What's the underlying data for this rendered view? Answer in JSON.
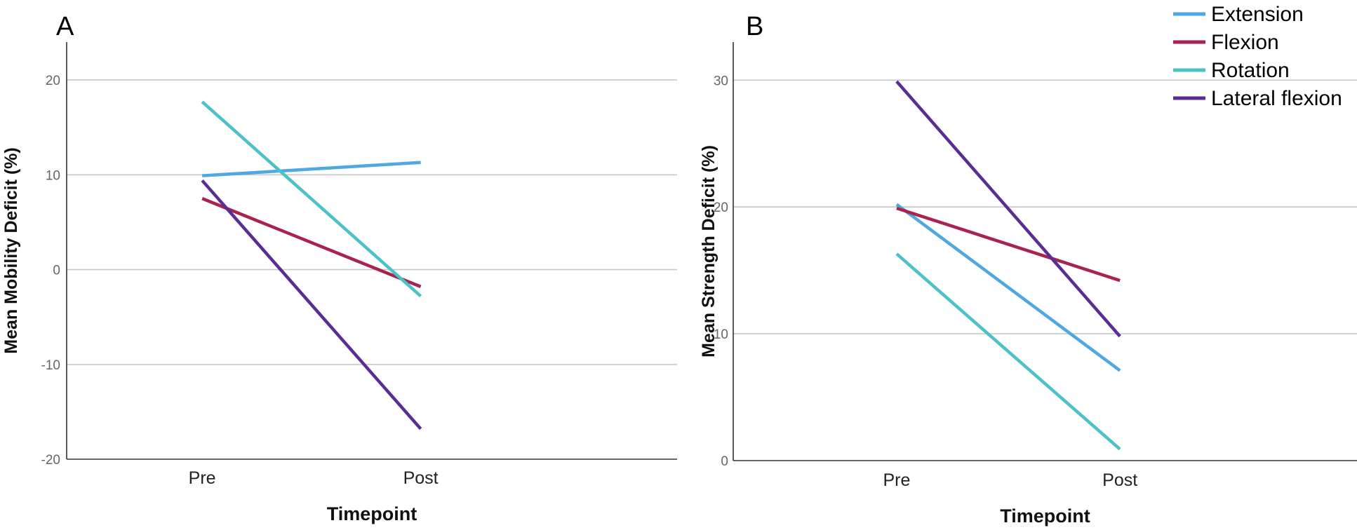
{
  "legend": {
    "placement": "top-right",
    "items": [
      {
        "label": "Extension",
        "color": "#4ea9e0"
      },
      {
        "label": "Flexion",
        "color": "#a8234f"
      },
      {
        "label": "Rotation",
        "color": "#49c2c8"
      },
      {
        "label": "Lateral flexion",
        "color": "#5b2c96"
      }
    ]
  },
  "chart_data": [
    {
      "type": "line",
      "panel_label": "A",
      "categories": [
        "Pre",
        "Post"
      ],
      "xlabel": "Timepoint",
      "ylabel": "Mean Mobility Deficit (%)",
      "ylim": [
        -20,
        24
      ],
      "yticks": [
        -20,
        -10,
        0,
        10,
        20
      ],
      "grid": true,
      "series": [
        {
          "name": "Extension",
          "color": "#4ea9e0",
          "values": [
            9.9,
            11.3
          ]
        },
        {
          "name": "Flexion",
          "color": "#a8234f",
          "values": [
            7.5,
            -1.8
          ]
        },
        {
          "name": "Rotation",
          "color": "#49c2c8",
          "values": [
            17.7,
            -2.8
          ]
        },
        {
          "name": "Lateral flexion",
          "color": "#5b2c96",
          "values": [
            9.4,
            -16.8
          ]
        }
      ]
    },
    {
      "type": "line",
      "panel_label": "B",
      "categories": [
        "Pre",
        "Post"
      ],
      "xlabel": "Timepoint",
      "ylabel": "Mean Strength Deficit (%)",
      "ylim": [
        0,
        33
      ],
      "yticks": [
        0,
        10,
        20,
        30
      ],
      "grid": true,
      "series": [
        {
          "name": "Extension",
          "color": "#4ea9e0",
          "values": [
            20.2,
            7.1
          ]
        },
        {
          "name": "Flexion",
          "color": "#a8234f",
          "values": [
            19.9,
            14.2
          ]
        },
        {
          "name": "Rotation",
          "color": "#49c2c8",
          "values": [
            16.3,
            0.9
          ]
        },
        {
          "name": "Lateral flexion",
          "color": "#5b2c96",
          "values": [
            29.9,
            9.8
          ]
        }
      ]
    }
  ]
}
